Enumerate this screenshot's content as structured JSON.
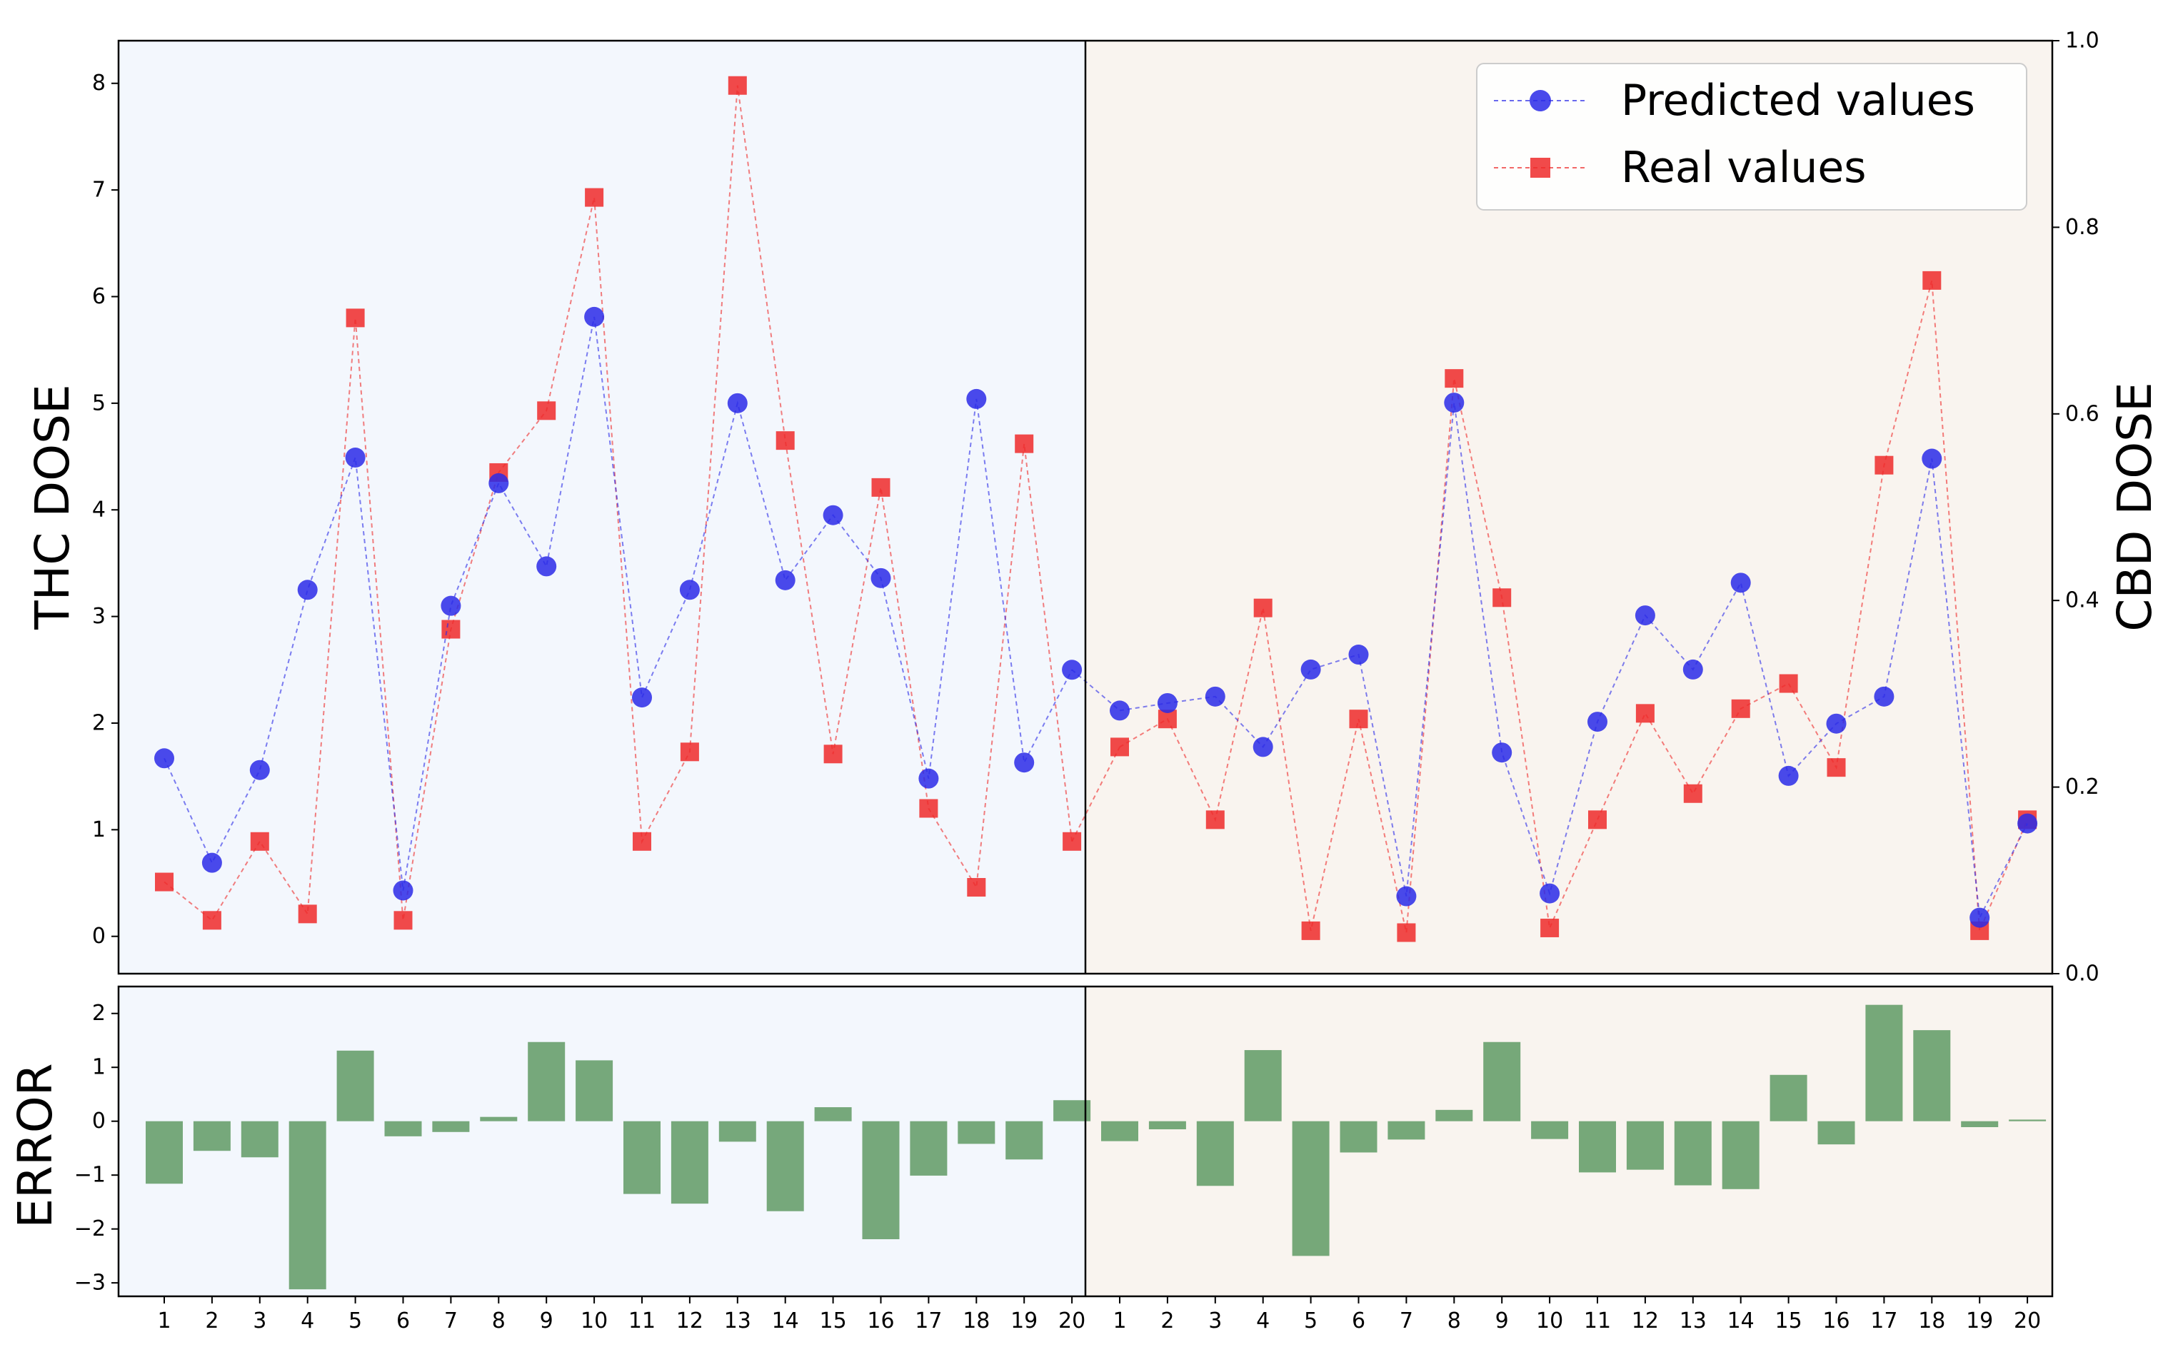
{
  "colors": {
    "left_bg": "#f3f7fd",
    "right_bg": "#f9f4ef",
    "predicted": "#2a2ae8",
    "real": "#ee2a2a",
    "error_bar": "#5f9a64",
    "axis": "#000000"
  },
  "chart_data": [
    {
      "id": "doses",
      "type": "line",
      "ylabel_left": "THC DOSE",
      "ylabel_right": "CBD DOSE",
      "ylim_left": [
        -0.35,
        8.4
      ],
      "ylim_right": [
        0.0,
        1.0
      ],
      "yticks_left": [
        "0",
        "1",
        "2",
        "3",
        "4",
        "5",
        "6",
        "7",
        "8"
      ],
      "yticks_right": [
        "0.0",
        "0.2",
        "0.4",
        "0.6",
        "0.8",
        "1.0"
      ],
      "legend": {
        "position": "top-right",
        "predicted_label": "Predicted values",
        "real_label": "Real values"
      },
      "categories": [
        "1",
        "2",
        "3",
        "4",
        "5",
        "6",
        "7",
        "8",
        "9",
        "10",
        "11",
        "12",
        "13",
        "14",
        "15",
        "16",
        "17",
        "18",
        "19",
        "20",
        "1",
        "2",
        "3",
        "4",
        "5",
        "6",
        "7",
        "8",
        "9",
        "10",
        "11",
        "12",
        "13",
        "14",
        "15",
        "16",
        "17",
        "18",
        "19",
        "20"
      ],
      "thc": {
        "predicted": [
          1.67,
          0.69,
          1.56,
          3.25,
          4.49,
          0.43,
          3.1,
          4.25,
          3.47,
          5.81,
          2.24,
          3.25,
          5.0,
          3.34,
          3.95,
          3.36,
          1.48,
          5.04,
          1.63,
          2.5
        ],
        "real": [
          0.51,
          0.15,
          0.89,
          0.21,
          5.8,
          0.15,
          2.88,
          4.35,
          4.93,
          6.93,
          0.89,
          1.73,
          7.98,
          4.65,
          1.71,
          4.21,
          1.2,
          0.46,
          4.62,
          0.89
        ]
      },
      "cbd": {
        "predicted": [
          0.282,
          0.29,
          0.297,
          0.243,
          0.326,
          0.342,
          0.083,
          0.612,
          0.237,
          0.086,
          0.27,
          0.384,
          0.326,
          0.419,
          0.212,
          0.268,
          0.297,
          0.552,
          0.06,
          0.161
        ],
        "real": [
          0.243,
          0.273,
          0.165,
          0.392,
          0.046,
          0.273,
          0.044,
          0.638,
          0.403,
          0.049,
          0.165,
          0.279,
          0.193,
          0.284,
          0.311,
          0.221,
          0.545,
          0.743,
          0.046,
          0.165
        ]
      }
    },
    {
      "id": "errors",
      "type": "bar",
      "ylabel": "ERROR",
      "ylim": [
        -3.25,
        2.5
      ],
      "yticks": [
        "-3",
        "-2",
        "-1",
        "0",
        "1",
        "2"
      ],
      "categories": [
        "1",
        "2",
        "3",
        "4",
        "5",
        "6",
        "7",
        "8",
        "9",
        "10",
        "11",
        "12",
        "13",
        "14",
        "15",
        "16",
        "17",
        "18",
        "19",
        "20",
        "1",
        "2",
        "3",
        "4",
        "5",
        "6",
        "7",
        "8",
        "9",
        "10",
        "11",
        "12",
        "13",
        "14",
        "15",
        "16",
        "17",
        "18",
        "19",
        "20"
      ],
      "values": [
        -1.16,
        -0.55,
        -0.67,
        -3.12,
        1.31,
        -0.28,
        -0.2,
        0.08,
        1.47,
        1.13,
        -1.35,
        -1.53,
        -0.38,
        -1.67,
        0.26,
        -2.19,
        -1.01,
        -0.42,
        -0.71,
        0.39,
        -0.37,
        -0.15,
        -1.2,
        1.32,
        -2.5,
        -0.58,
        -0.34,
        0.21,
        1.47,
        -0.33,
        -0.95,
        -0.9,
        -1.19,
        -1.26,
        0.86,
        -0.43,
        2.16,
        1.69,
        -0.11,
        0.03
      ]
    }
  ]
}
